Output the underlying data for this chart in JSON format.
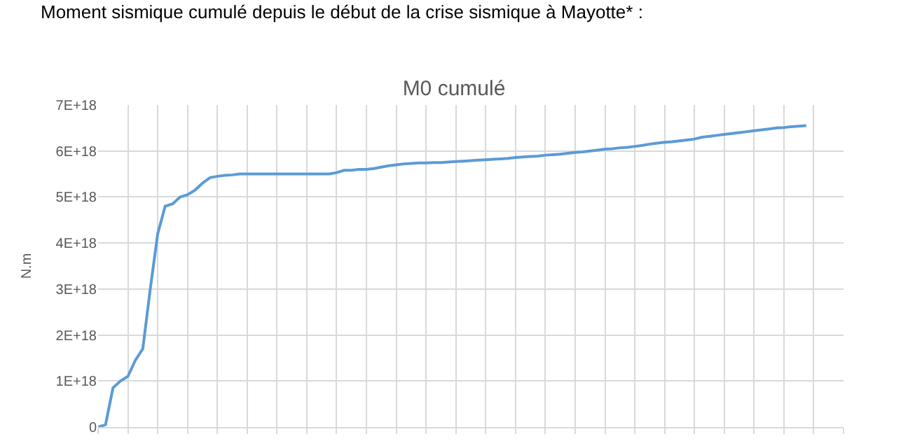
{
  "chart_data": {
    "type": "line",
    "title": "M0 cumulé",
    "ylabel": "N.m",
    "annotations": [
      "Moment sismique cumulé depuis le début de la crise sismique à Mayotte* :"
    ],
    "categories": [
      null,
      null,
      null,
      null,
      null,
      null,
      null,
      null,
      null,
      null,
      null,
      null,
      null,
      null,
      null,
      null,
      null,
      null,
      null,
      null,
      null,
      null,
      null,
      null,
      null,
      null,
      null,
      null,
      null,
      null,
      null,
      null,
      null,
      null,
      null,
      null,
      null,
      null,
      null,
      null,
      null,
      null,
      null,
      null,
      null,
      null,
      null,
      null,
      null,
      null,
      null,
      null,
      null,
      null,
      null,
      null,
      null,
      null,
      null,
      null,
      null,
      null,
      null,
      null,
      null,
      null,
      null,
      null,
      null,
      null,
      null,
      null,
      null,
      null,
      null,
      null,
      null,
      null,
      null,
      null,
      null,
      null,
      null,
      null,
      null,
      null,
      null,
      null,
      null,
      null,
      null,
      null,
      null,
      null,
      null,
      null,
      null,
      null,
      null,
      null,
      null
    ],
    "series": [
      {
        "color": "#5b9bd5",
        "values": [
          0,
          5e+16,
          8.5e+17,
          1e+18,
          1.1e+18,
          1.45e+18,
          1.7e+18,
          3e+18,
          4.2e+18,
          4.8e+18,
          4.85e+18,
          5e+18,
          5.05e+18,
          5.15e+18,
          5.3e+18,
          5.42e+18,
          5.45e+18,
          5.47e+18,
          5.48e+18,
          5.5e+18,
          5.5e+18,
          5.5e+18,
          5.5e+18,
          5.5e+18,
          5.5e+18,
          5.5e+18,
          5.5e+18,
          5.5e+18,
          5.5e+18,
          5.5e+18,
          5.5e+18,
          5.5e+18,
          5.53e+18,
          5.58e+18,
          5.58e+18,
          5.6e+18,
          5.6e+18,
          5.62e+18,
          5.65e+18,
          5.68e+18,
          5.7e+18,
          5.72e+18,
          5.73e+18,
          5.74e+18,
          5.74e+18,
          5.75e+18,
          5.75e+18,
          5.76e+18,
          5.77e+18,
          5.78e+18,
          5.79e+18,
          5.8e+18,
          5.81e+18,
          5.82e+18,
          5.83e+18,
          5.84e+18,
          5.86e+18,
          5.87e+18,
          5.88e+18,
          5.89e+18,
          5.91e+18,
          5.92e+18,
          5.93e+18,
          5.95e+18,
          5.97e+18,
          5.98e+18,
          6e+18,
          6.02e+18,
          6.04e+18,
          6.05e+18,
          6.07e+18,
          6.08e+18,
          6.1e+18,
          6.12e+18,
          6.15e+18,
          6.17e+18,
          6.19e+18,
          6.2e+18,
          6.22e+18,
          6.24e+18,
          6.26e+18,
          6.3e+18,
          6.32e+18,
          6.34e+18,
          6.36e+18,
          6.38e+18,
          6.4e+18,
          6.42e+18,
          6.44e+18,
          6.46e+18,
          6.48e+18,
          6.5e+18,
          6.51e+18,
          6.53e+18,
          6.54e+18,
          6.55e+18,
          null,
          null,
          null,
          null,
          null
        ]
      }
    ],
    "ylim": [
      0,
      7e+18
    ],
    "yticks": [
      0,
      {
        "value": 1e+18,
        "label": "1E+18"
      },
      {
        "value": 2e+18,
        "label": "2E+18"
      },
      {
        "value": 3e+18,
        "label": "3E+18"
      },
      {
        "value": 4e+18,
        "label": "4E+18"
      },
      {
        "value": 5e+18,
        "label": "5E+18"
      },
      {
        "value": 6e+18,
        "label": "6E+18"
      },
      {
        "value": 7e+18,
        "label": "7E+18"
      }
    ],
    "tick_labels": "y",
    "grid": true,
    "line_style": "solid",
    "marker": "none"
  }
}
